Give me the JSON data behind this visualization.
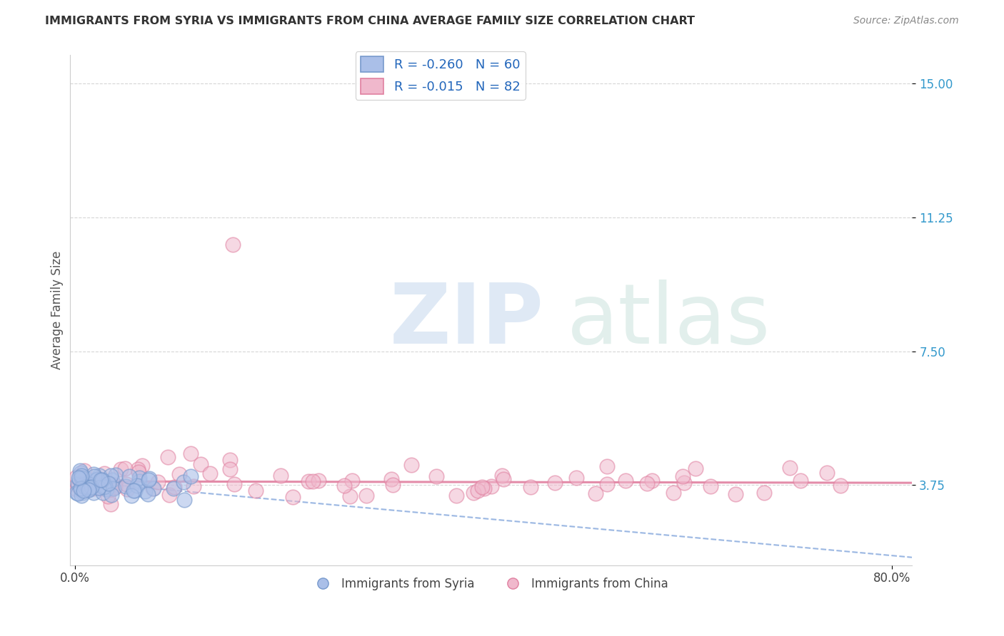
{
  "title": "IMMIGRANTS FROM SYRIA VS IMMIGRANTS FROM CHINA AVERAGE FAMILY SIZE CORRELATION CHART",
  "source": "Source: ZipAtlas.com",
  "ylabel": "Average Family Size",
  "x_ticks": [
    0.0,
    0.8
  ],
  "y_ticks_right": [
    3.75,
    7.5,
    11.25,
    15.0
  ],
  "y_min": 1.5,
  "y_max": 15.8,
  "x_min": -0.005,
  "x_max": 0.82,
  "watermark_zip": "ZIP",
  "watermark_atlas": "atlas",
  "series": [
    {
      "name": "Immigrants from Syria",
      "R": -0.26,
      "N": 60,
      "edge_color": "#7799cc",
      "face_color": "#aabfe8",
      "marker_size": 220
    },
    {
      "name": "Immigrants from China",
      "R": -0.015,
      "N": 82,
      "edge_color": "#e080a0",
      "face_color": "#f0b8cc",
      "marker_size": 220
    }
  ],
  "grid_color": "#cccccc",
  "bg_color": "#ffffff",
  "title_color": "#333333",
  "axis_label_color": "#555555",
  "right_tick_color": "#3399cc",
  "source_color": "#888888",
  "trendline_syria_color": "#88aadd",
  "trendline_china_color": "#e080a0"
}
